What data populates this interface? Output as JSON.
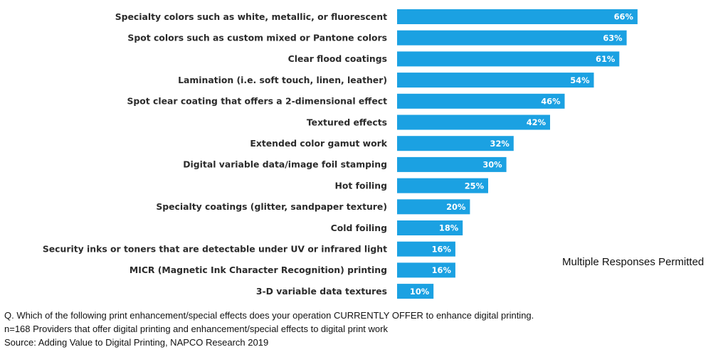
{
  "chart_data": {
    "type": "bar",
    "orientation": "horizontal",
    "categories": [
      "Specialty colors such as white, metallic, or fluorescent",
      "Spot colors such as custom mixed or Pantone colors",
      "Clear flood coatings",
      "Lamination (i.e. soft touch, linen, leather)",
      "Spot clear coating that offers a 2-dimensional effect",
      "Textured effects",
      "Extended color gamut work",
      "Digital variable data/image foil stamping",
      "Hot foiling",
      "Specialty coatings (glitter, sandpaper texture)",
      "Cold foiling",
      "Security inks or toners that are detectable under UV or infrared light",
      "MICR (Magnetic Ink Character Recognition) printing",
      "3-D variable data textures"
    ],
    "values": [
      66,
      63,
      61,
      54,
      46,
      42,
      32,
      30,
      25,
      20,
      18,
      16,
      16,
      10
    ],
    "value_labels": [
      "66%",
      "63%",
      "61%",
      "54%",
      "46%",
      "42%",
      "32%",
      "30%",
      "25%",
      "20%",
      "18%",
      "16%",
      "16%",
      "10%"
    ],
    "xlim": [
      0,
      100
    ],
    "grid": false,
    "bar_color": "#1ba1e2",
    "value_label_color": "#ffffff"
  },
  "note": "Multiple Responses Permitted",
  "footer": {
    "question": "Q. Which of the following print enhancement/special effects does your operation CURRENTLY OFFER to enhance digital printing.",
    "sample": "n=168 Providers that offer digital printing and enhancement/special effects to digital print work",
    "source": "Source: Adding Value to Digital Printing, NAPCO Research 2019"
  }
}
